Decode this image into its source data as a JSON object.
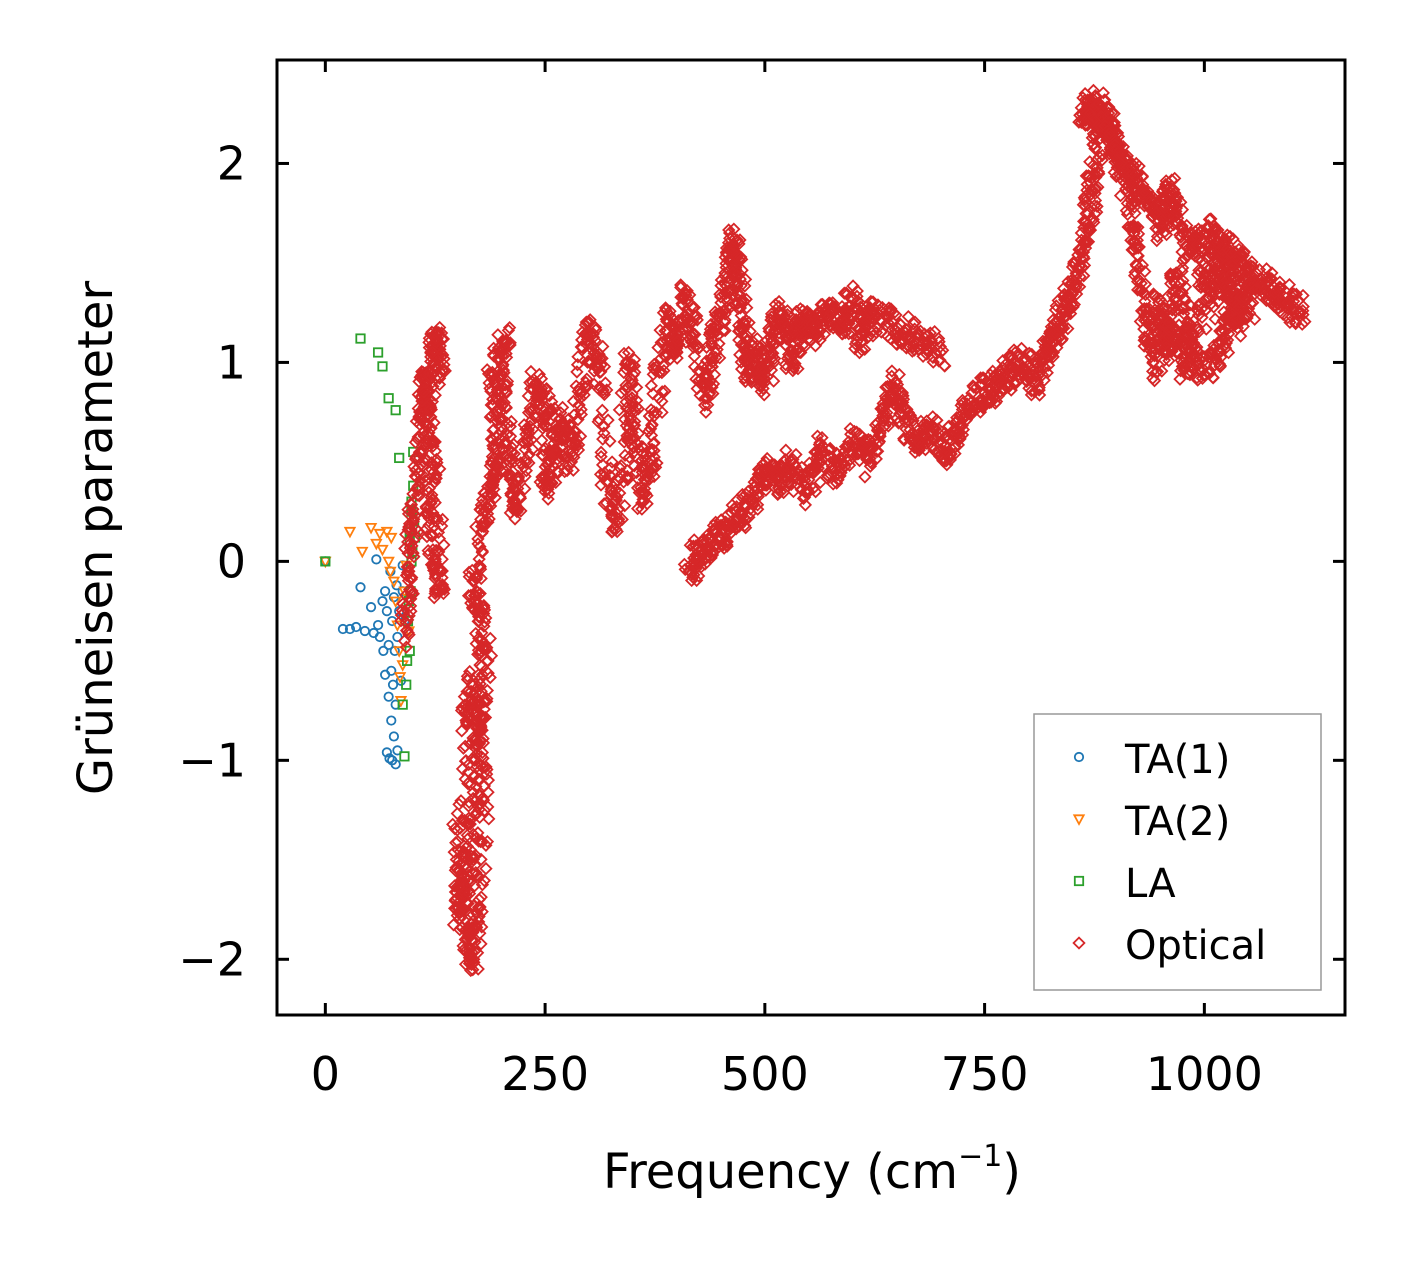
{
  "chart_data": {
    "type": "scatter",
    "title": "",
    "xlabel": "Frequency (cm",
    "xlabel_sup": "−1",
    "xlabel_suffix": ")",
    "ylabel": "Grüneisen parameter",
    "xlim": [
      -55,
      1160
    ],
    "ylim": [
      -2.28,
      2.52
    ],
    "xticks": [
      0,
      250,
      500,
      750,
      1000
    ],
    "xtick_labels": [
      "0",
      "250",
      "500",
      "750",
      "1000"
    ],
    "yticks": [
      -2,
      -1,
      0,
      1,
      2
    ],
    "ytick_labels": [
      "−2",
      "−1",
      "0",
      "1",
      "2"
    ],
    "grid": false,
    "legend_position": "bottom-right",
    "series": [
      {
        "name": "TA(1)",
        "marker": "circle",
        "color": "#1f77b4",
        "points": [
          [
            0,
            0
          ],
          [
            20,
            -0.34
          ],
          [
            28,
            -0.34
          ],
          [
            35,
            -0.33
          ],
          [
            40,
            -0.13
          ],
          [
            45,
            -0.35
          ],
          [
            52,
            -0.23
          ],
          [
            55,
            -0.36
          ],
          [
            58,
            0.01
          ],
          [
            60,
            -0.32
          ],
          [
            62,
            -0.38
          ],
          [
            65,
            -0.2
          ],
          [
            66,
            -0.45
          ],
          [
            68,
            -0.15
          ],
          [
            68,
            -0.57
          ],
          [
            70,
            -0.25
          ],
          [
            70,
            -0.96
          ],
          [
            72,
            -0.42
          ],
          [
            72,
            -0.68
          ],
          [
            73,
            -0.99
          ],
          [
            74,
            -0.05
          ],
          [
            75,
            -0.55
          ],
          [
            75,
            -0.8
          ],
          [
            76,
            -0.3
          ],
          [
            76,
            -1.0
          ],
          [
            77,
            -0.62
          ],
          [
            78,
            -0.18
          ],
          [
            78,
            -0.88
          ],
          [
            79,
            -0.45
          ],
          [
            80,
            -1.02
          ],
          [
            80,
            -0.72
          ],
          [
            81,
            -0.12
          ],
          [
            82,
            -0.38
          ],
          [
            82,
            -0.95
          ],
          [
            84,
            -0.25
          ],
          [
            86,
            -0.6
          ],
          [
            88,
            -0.02
          ],
          [
            88,
            -0.15
          ],
          [
            90,
            -0.3
          ]
        ]
      },
      {
        "name": "TA(2)",
        "marker": "triangle-down",
        "color": "#ff7f0e",
        "points": [
          [
            0,
            0
          ],
          [
            28,
            0.15
          ],
          [
            42,
            0.05
          ],
          [
            52,
            0.17
          ],
          [
            58,
            0.09
          ],
          [
            62,
            0.14
          ],
          [
            65,
            0.06
          ],
          [
            70,
            0.15
          ],
          [
            72,
            0.0
          ],
          [
            74,
            -0.05
          ],
          [
            75,
            0.12
          ],
          [
            78,
            -0.1
          ],
          [
            80,
            -0.2
          ],
          [
            82,
            -0.32
          ],
          [
            84,
            -0.45
          ],
          [
            85,
            -0.58
          ],
          [
            86,
            -0.7
          ],
          [
            88,
            -0.52
          ],
          [
            90,
            -0.15
          ],
          [
            92,
            -0.02
          ],
          [
            95,
            -0.35
          ]
        ]
      },
      {
        "name": "LA",
        "marker": "square",
        "color": "#2ca02c",
        "points": [
          [
            0,
            0
          ],
          [
            40,
            1.12
          ],
          [
            60,
            1.05
          ],
          [
            65,
            0.98
          ],
          [
            72,
            0.82
          ],
          [
            80,
            0.76
          ],
          [
            84,
            0.52
          ],
          [
            88,
            -0.72
          ],
          [
            90,
            -0.98
          ],
          [
            92,
            -0.62
          ],
          [
            94,
            -0.3
          ],
          [
            96,
            0.1
          ],
          [
            96,
            0.15
          ],
          [
            98,
            0.25
          ],
          [
            98,
            0.3
          ],
          [
            100,
            0.38
          ],
          [
            100,
            0.55
          ],
          [
            98,
            0.0
          ],
          [
            97,
            -0.15
          ],
          [
            96,
            -0.45
          ],
          [
            99,
            0.05
          ],
          [
            101,
            0.2
          ],
          [
            102,
            0.12
          ],
          [
            95,
            -0.2
          ],
          [
            93,
            -0.5
          ]
        ]
      },
      {
        "name": "Optical",
        "marker": "diamond",
        "color": "#d62728",
        "points": [],
        "trace_groups": [
          [
            [
              90,
              -0.4
            ],
            [
              95,
              -0.05
            ],
            [
              100,
              0.2
            ],
            [
              108,
              0.55
            ],
            [
              112,
              0.85
            ],
            [
              114,
              0.9
            ],
            [
              118,
              0.6
            ],
            [
              120,
              0.3
            ],
            [
              125,
              0.0
            ],
            [
              130,
              -0.15
            ],
            [
              122,
              1.05
            ],
            [
              126,
              1.12
            ],
            [
              130,
              0.92
            ]
          ],
          [
            [
              150,
              -1.35
            ],
            [
              160,
              -1.85
            ],
            [
              168,
              -2.02
            ],
            [
              175,
              -1.7
            ],
            [
              180,
              -1.2
            ],
            [
              176,
              -0.85
            ],
            [
              168,
              -0.62
            ],
            [
              160,
              -0.8
            ],
            [
              155,
              -1.6
            ],
            [
              150,
              -1.78
            ],
            [
              165,
              -1.45
            ],
            [
              170,
              -1.0
            ],
            [
              184,
              -0.5
            ],
            [
              175,
              -0.3
            ],
            [
              168,
              -0.1
            ],
            [
              180,
              0.25
            ],
            [
              190,
              0.4
            ],
            [
              196,
              0.6
            ],
            [
              190,
              0.95
            ],
            [
              205,
              1.1
            ],
            [
              200,
              0.8
            ],
            [
              210,
              0.5
            ],
            [
              218,
              0.25
            ],
            [
              230,
              0.6
            ],
            [
              240,
              0.9
            ],
            [
              255,
              0.75
            ],
            [
              250,
              0.35
            ],
            [
              262,
              0.55
            ],
            [
              270,
              0.7
            ],
            [
              280,
              0.5
            ],
            [
              290,
              0.82
            ],
            [
              300,
              1.2
            ],
            [
              312,
              0.95
            ],
            [
              320,
              0.4
            ],
            [
              332,
              0.15
            ],
            [
              340,
              0.6
            ],
            [
              345,
              1.05
            ],
            [
              352,
              0.62
            ],
            [
              362,
              0.3
            ],
            [
              370,
              0.55
            ],
            [
              380,
              0.95
            ],
            [
              390,
              1.2
            ],
            [
              400,
              1.05
            ],
            [
              410,
              1.35
            ],
            [
              420,
              1.1
            ],
            [
              432,
              0.82
            ],
            [
              440,
              1.0
            ],
            [
              450,
              1.25
            ],
            [
              458,
              1.4
            ],
            [
              465,
              1.62
            ],
            [
              470,
              1.45
            ],
            [
              475,
              1.2
            ],
            [
              480,
              0.95
            ],
            [
              490,
              1.05
            ],
            [
              500,
              0.9
            ],
            [
              510,
              1.15
            ],
            [
              520,
              1.25
            ],
            [
              530,
              1.0
            ],
            [
              540,
              1.2
            ],
            [
              550,
              1.15
            ],
            [
              560,
              1.2
            ],
            [
              575,
              1.25
            ],
            [
              590,
              1.2
            ],
            [
              600,
              1.32
            ],
            [
              610,
              1.1
            ],
            [
              620,
              1.25
            ],
            [
              640,
              1.2
            ],
            [
              660,
              1.15
            ],
            [
              680,
              1.1
            ],
            [
              700,
              1.05
            ]
          ],
          [
            [
              415,
              -0.05
            ],
            [
              425,
              0.05
            ],
            [
              440,
              0.1
            ],
            [
              455,
              0.15
            ],
            [
              470,
              0.22
            ],
            [
              485,
              0.3
            ],
            [
              500,
              0.45
            ],
            [
              515,
              0.4
            ],
            [
              530,
              0.5
            ],
            [
              550,
              0.35
            ],
            [
              565,
              0.55
            ],
            [
              580,
              0.45
            ],
            [
              600,
              0.6
            ],
            [
              620,
              0.5
            ],
            [
              635,
              0.75
            ],
            [
              648,
              0.9
            ],
            [
              660,
              0.7
            ],
            [
              675,
              0.6
            ],
            [
              690,
              0.65
            ],
            [
              705,
              0.55
            ],
            [
              720,
              0.65
            ],
            [
              735,
              0.8
            ],
            [
              750,
              0.85
            ],
            [
              765,
              0.9
            ],
            [
              780,
              0.95
            ],
            [
              795,
              1.0
            ],
            [
              810,
              0.9
            ],
            [
              820,
              1.05
            ],
            [
              830,
              1.15
            ],
            [
              840,
              1.25
            ],
            [
              850,
              1.35
            ],
            [
              860,
              1.55
            ],
            [
              868,
              1.75
            ],
            [
              875,
              1.95
            ],
            [
              882,
              2.25
            ],
            [
              890,
              2.2
            ],
            [
              900,
              2.1
            ],
            [
              910,
              1.9
            ],
            [
              920,
              1.65
            ],
            [
              930,
              1.35
            ],
            [
              938,
              1.1
            ],
            [
              948,
              1.3
            ],
            [
              958,
              1.05
            ],
            [
              968,
              1.45
            ],
            [
              980,
              1.2
            ],
            [
              990,
              1.0
            ],
            [
              1000,
              1.5
            ],
            [
              1010,
              1.35
            ],
            [
              1020,
              1.55
            ],
            [
              1030,
              1.4
            ],
            [
              1040,
              1.2
            ],
            [
              1050,
              1.45
            ],
            [
              1065,
              1.4
            ],
            [
              1080,
              1.35
            ],
            [
              1095,
              1.3
            ],
            [
              1110,
              1.25
            ]
          ],
          [
            [
              860,
              2.28
            ],
            [
              870,
              2.25
            ],
            [
              880,
              2.3
            ],
            [
              892,
              2.15
            ],
            [
              905,
              2.0
            ],
            [
              918,
              1.95
            ],
            [
              930,
              1.85
            ],
            [
              945,
              1.75
            ],
            [
              952,
              1.68
            ],
            [
              960,
              1.88
            ],
            [
              970,
              1.7
            ],
            [
              985,
              1.55
            ],
            [
              1000,
              1.65
            ],
            [
              1015,
              1.6
            ],
            [
              1030,
              1.55
            ],
            [
              1045,
              1.5
            ],
            [
              945,
              0.95
            ],
            [
              960,
              1.2
            ],
            [
              975,
              0.98
            ],
            [
              1005,
              0.95
            ],
            [
              1020,
              1.1
            ],
            [
              1030,
              1.25
            ],
            [
              1055,
              1.3
            ]
          ]
        ]
      }
    ]
  }
}
